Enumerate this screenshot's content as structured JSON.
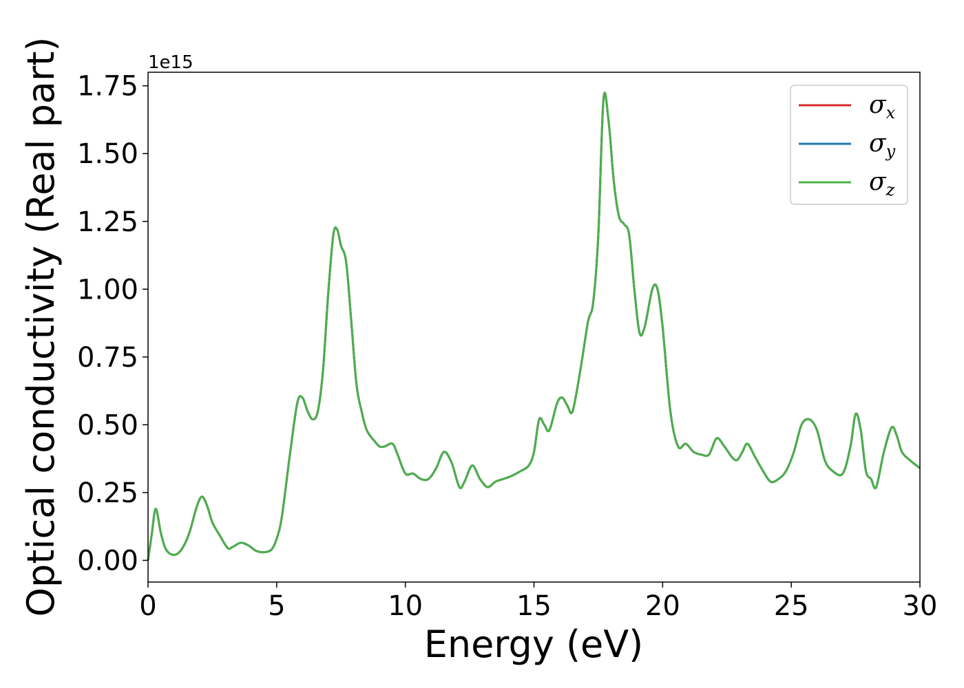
{
  "chart_data": {
    "type": "line",
    "title": "",
    "xlabel": "Energy (eV)",
    "ylabel": "Optical conductivity (Real part)",
    "y_offset_label": "1e15",
    "y_scale": 1000000000000000.0,
    "xlim": [
      0,
      30
    ],
    "ylim": [
      -0.08,
      1.8
    ],
    "x_ticks": [
      0,
      5,
      10,
      15,
      20,
      25,
      30
    ],
    "x_tick_labels": [
      "0",
      "5",
      "10",
      "15",
      "20",
      "25",
      "30"
    ],
    "y_ticks": [
      0,
      0.25,
      0.5,
      0.75,
      1.0,
      1.25,
      1.5,
      1.75
    ],
    "y_tick_labels": [
      "0.00",
      "0.25",
      "0.50",
      "0.75",
      "1.00",
      "1.25",
      "1.50",
      "1.75"
    ],
    "grid": false,
    "legend_position": "top-right",
    "x": [
      0,
      0.15,
      0.3,
      0.5,
      0.7,
      1.0,
      1.3,
      1.6,
      1.9,
      2.1,
      2.3,
      2.5,
      2.8,
      3.1,
      3.3,
      3.6,
      3.9,
      4.2,
      4.5,
      4.8,
      5.0,
      5.2,
      5.5,
      5.8,
      6.0,
      6.2,
      6.4,
      6.6,
      6.8,
      7.0,
      7.2,
      7.35,
      7.5,
      7.7,
      7.9,
      8.1,
      8.3,
      8.5,
      8.8,
      9.0,
      9.2,
      9.5,
      9.7,
      10.0,
      10.3,
      10.6,
      10.9,
      11.2,
      11.5,
      11.8,
      12.1,
      12.3,
      12.6,
      12.9,
      13.2,
      13.5,
      13.8,
      14.1,
      14.5,
      14.8,
      15.0,
      15.2,
      15.4,
      15.6,
      15.9,
      16.1,
      16.3,
      16.5,
      16.8,
      17.1,
      17.3,
      17.5,
      17.7,
      17.9,
      18.1,
      18.3,
      18.5,
      18.7,
      18.9,
      19.1,
      19.3,
      19.6,
      19.8,
      20.0,
      20.3,
      20.6,
      20.9,
      21.2,
      21.5,
      21.8,
      22.1,
      22.4,
      22.7,
      22.9,
      23.1,
      23.3,
      23.6,
      23.9,
      24.2,
      24.5,
      24.8,
      25.1,
      25.4,
      25.7,
      26.0,
      26.3,
      26.6,
      27.0,
      27.3,
      27.5,
      27.7,
      27.9,
      28.1,
      28.3,
      28.6,
      28.9,
      29.1,
      29.3,
      29.6,
      30.0
    ],
    "series": [
      {
        "name": "x",
        "color": "#d62728",
        "values": [
          0.0,
          0.1,
          0.19,
          0.1,
          0.04,
          0.02,
          0.04,
          0.1,
          0.2,
          0.235,
          0.2,
          0.14,
          0.09,
          0.045,
          0.05,
          0.065,
          0.055,
          0.035,
          0.03,
          0.04,
          0.08,
          0.16,
          0.38,
          0.58,
          0.6,
          0.55,
          0.52,
          0.55,
          0.7,
          0.98,
          1.2,
          1.22,
          1.16,
          1.1,
          0.88,
          0.65,
          0.55,
          0.48,
          0.44,
          0.42,
          0.42,
          0.43,
          0.39,
          0.32,
          0.32,
          0.3,
          0.3,
          0.34,
          0.4,
          0.36,
          0.27,
          0.29,
          0.35,
          0.3,
          0.27,
          0.29,
          0.3,
          0.31,
          0.33,
          0.35,
          0.4,
          0.52,
          0.5,
          0.48,
          0.58,
          0.6,
          0.57,
          0.55,
          0.7,
          0.88,
          0.95,
          1.2,
          1.7,
          1.62,
          1.4,
          1.27,
          1.24,
          1.2,
          1.0,
          0.84,
          0.86,
          1.0,
          1.0,
          0.86,
          0.55,
          0.42,
          0.43,
          0.4,
          0.39,
          0.39,
          0.45,
          0.42,
          0.38,
          0.37,
          0.4,
          0.43,
          0.38,
          0.33,
          0.29,
          0.3,
          0.33,
          0.4,
          0.5,
          0.52,
          0.48,
          0.37,
          0.33,
          0.32,
          0.42,
          0.54,
          0.48,
          0.33,
          0.3,
          0.27,
          0.4,
          0.49,
          0.46,
          0.4,
          0.37,
          0.34
        ]
      },
      {
        "name": "y",
        "color": "#1f77b4",
        "values": [
          0.0,
          0.1,
          0.19,
          0.1,
          0.04,
          0.02,
          0.04,
          0.1,
          0.2,
          0.235,
          0.2,
          0.14,
          0.09,
          0.045,
          0.05,
          0.065,
          0.055,
          0.035,
          0.03,
          0.04,
          0.08,
          0.16,
          0.38,
          0.58,
          0.6,
          0.55,
          0.52,
          0.55,
          0.7,
          0.98,
          1.2,
          1.22,
          1.16,
          1.1,
          0.88,
          0.65,
          0.55,
          0.48,
          0.44,
          0.42,
          0.42,
          0.43,
          0.39,
          0.32,
          0.32,
          0.3,
          0.3,
          0.34,
          0.4,
          0.36,
          0.27,
          0.29,
          0.35,
          0.3,
          0.27,
          0.29,
          0.3,
          0.31,
          0.33,
          0.35,
          0.4,
          0.52,
          0.5,
          0.48,
          0.58,
          0.6,
          0.57,
          0.55,
          0.7,
          0.88,
          0.95,
          1.2,
          1.7,
          1.62,
          1.4,
          1.27,
          1.24,
          1.2,
          1.0,
          0.84,
          0.86,
          1.0,
          1.0,
          0.86,
          0.55,
          0.42,
          0.43,
          0.4,
          0.39,
          0.39,
          0.45,
          0.42,
          0.38,
          0.37,
          0.4,
          0.43,
          0.38,
          0.33,
          0.29,
          0.3,
          0.33,
          0.4,
          0.5,
          0.52,
          0.48,
          0.37,
          0.33,
          0.32,
          0.42,
          0.54,
          0.48,
          0.33,
          0.3,
          0.27,
          0.4,
          0.49,
          0.46,
          0.4,
          0.37,
          0.34
        ]
      },
      {
        "name": "z",
        "color": "#4daf4a",
        "values": [
          0.0,
          0.1,
          0.19,
          0.1,
          0.04,
          0.02,
          0.04,
          0.1,
          0.2,
          0.235,
          0.2,
          0.14,
          0.09,
          0.045,
          0.05,
          0.065,
          0.055,
          0.035,
          0.03,
          0.04,
          0.08,
          0.16,
          0.38,
          0.58,
          0.6,
          0.55,
          0.52,
          0.55,
          0.7,
          0.98,
          1.2,
          1.22,
          1.16,
          1.1,
          0.88,
          0.65,
          0.55,
          0.48,
          0.44,
          0.42,
          0.42,
          0.43,
          0.39,
          0.32,
          0.32,
          0.3,
          0.3,
          0.34,
          0.4,
          0.36,
          0.27,
          0.29,
          0.35,
          0.3,
          0.27,
          0.29,
          0.3,
          0.31,
          0.33,
          0.35,
          0.4,
          0.52,
          0.5,
          0.48,
          0.58,
          0.6,
          0.57,
          0.55,
          0.7,
          0.88,
          0.95,
          1.2,
          1.7,
          1.62,
          1.4,
          1.27,
          1.24,
          1.2,
          1.0,
          0.84,
          0.86,
          1.0,
          1.0,
          0.86,
          0.55,
          0.42,
          0.43,
          0.4,
          0.39,
          0.39,
          0.45,
          0.42,
          0.38,
          0.37,
          0.4,
          0.43,
          0.38,
          0.33,
          0.29,
          0.3,
          0.33,
          0.4,
          0.5,
          0.52,
          0.48,
          0.37,
          0.33,
          0.32,
          0.42,
          0.54,
          0.48,
          0.33,
          0.3,
          0.27,
          0.4,
          0.49,
          0.46,
          0.4,
          0.37,
          0.34
        ]
      }
    ],
    "legend": [
      {
        "symbol": "σ",
        "subscript": "x",
        "color": "#d62728"
      },
      {
        "symbol": "σ",
        "subscript": "y",
        "color": "#1f77b4"
      },
      {
        "symbol": "σ",
        "subscript": "z",
        "color": "#4daf4a"
      }
    ]
  }
}
